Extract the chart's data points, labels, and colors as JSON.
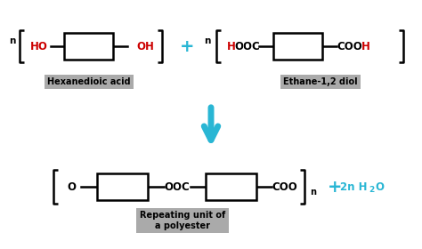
{
  "bg_color": "#ffffff",
  "black": "#000000",
  "red": "#cc0000",
  "cyan": "#29b6d4",
  "gray_bg": "#aaaaaa",
  "label1": "Hexanedioic acid",
  "label2": "Ethane-1,2 diol",
  "label3": "Repeating unit of\na polyester",
  "lw": 1.8,
  "fs": 8.5,
  "fs_n": 7.5,
  "fs_plus": 14
}
